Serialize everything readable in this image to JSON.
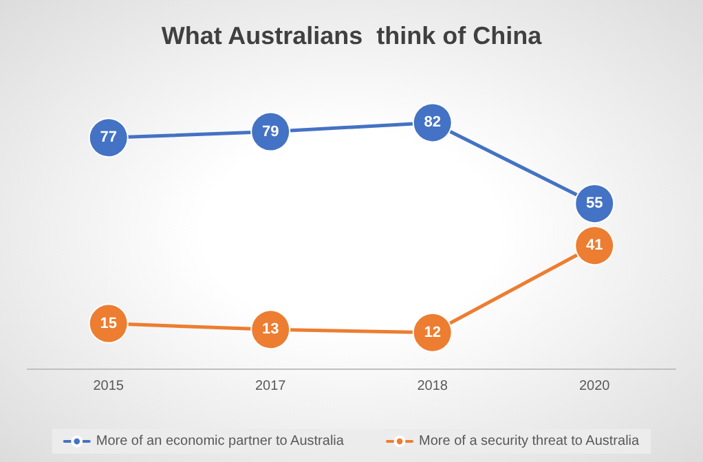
{
  "chart_data": {
    "type": "line",
    "title": "What Australians  think of China",
    "categories": [
      "2015",
      "2017",
      "2018",
      "2020"
    ],
    "series": [
      {
        "name": "More of an economic partner to Australia",
        "color": "#4472c4",
        "values": [
          77,
          79,
          82,
          55
        ]
      },
      {
        "name": "More of a security threat to Australia",
        "color": "#ed7d31",
        "values": [
          15,
          13,
          12,
          41
        ]
      }
    ],
    "data_labels": true,
    "marker": "circle",
    "grid": false,
    "legend": "bottom",
    "line_style": "solid"
  }
}
